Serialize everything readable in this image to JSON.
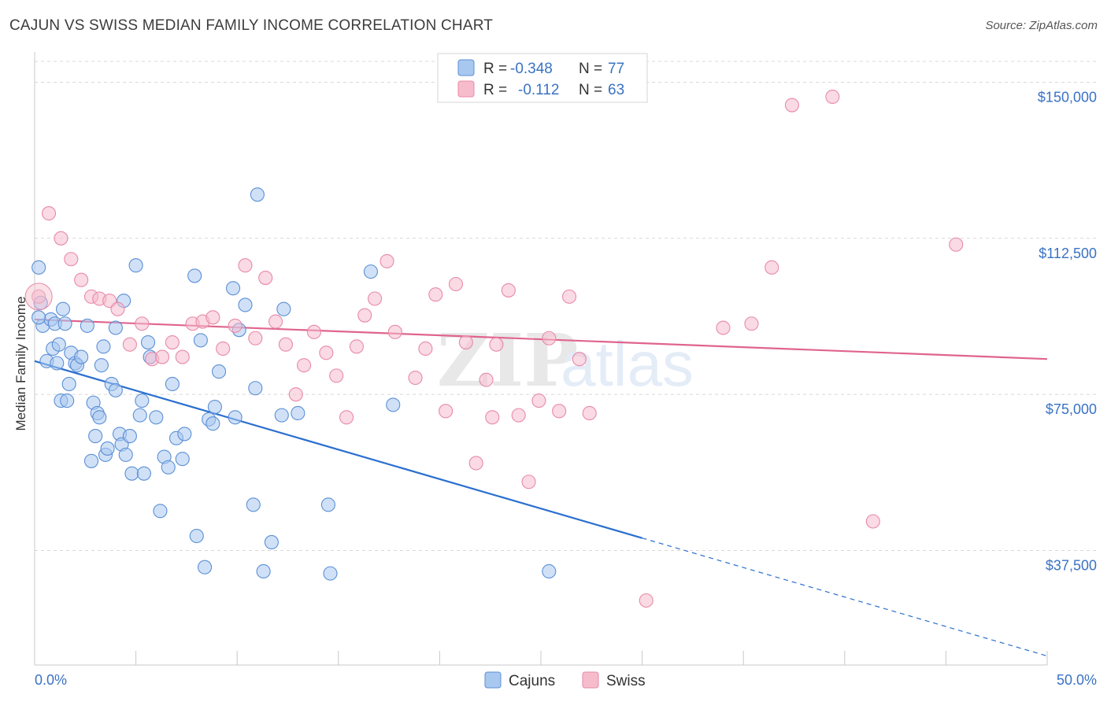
{
  "title": "CAJUN VS SWISS MEDIAN FAMILY INCOME CORRELATION CHART",
  "source": "Source: ZipAtlas.com",
  "watermark": {
    "zip": "ZIP",
    "atlas": "atlas"
  },
  "legend": {
    "r_label": "R =",
    "n_label": "N =",
    "rows": [
      {
        "r": "-0.348",
        "n": "77"
      },
      {
        "r": "-0.112",
        "n": "63"
      }
    ]
  },
  "colors": {
    "cajun_fill": "#a9c8f0",
    "cajun_stroke": "#5b8fd6",
    "cajun_line": "#2a6fcf",
    "swiss_fill": "#f6bccd",
    "swiss_stroke": "#e88aa7",
    "swiss_line": "#e0648d",
    "axis_label": "#3a72c4",
    "grid": "#d8d8d8"
  },
  "chart_data": {
    "type": "scatter",
    "title": "CAJUN VS SWISS MEDIAN FAMILY INCOME CORRELATION CHART",
    "xlabel": "",
    "ylabel": "Median Family Income",
    "xlim": [
      0,
      50
    ],
    "ylim": [
      10000,
      155000
    ],
    "x_tick_labels": [
      "0.0%",
      "50.0%"
    ],
    "y_ticks": [
      37500,
      75000,
      112500,
      150000
    ],
    "y_tick_labels": [
      "$37,500",
      "$75,000",
      "$112,500",
      "$150,000"
    ],
    "grid": true,
    "legend_position": "top-center",
    "series": [
      {
        "name": "Cajuns",
        "r": -0.348,
        "n": 77,
        "trend": {
          "x0": 0,
          "y0": 83000,
          "x1": 30,
          "y1": 40500,
          "x_dash_end": 50
        },
        "points": [
          [
            0.2,
            105500
          ],
          [
            0.3,
            97000
          ],
          [
            0.4,
            91500
          ],
          [
            0.6,
            83000
          ],
          [
            0.8,
            93000
          ],
          [
            0.9,
            86000
          ],
          [
            1.0,
            92000
          ],
          [
            1.1,
            82500
          ],
          [
            1.2,
            87000
          ],
          [
            1.3,
            73500
          ],
          [
            1.4,
            95500
          ],
          [
            1.5,
            92000
          ],
          [
            1.6,
            73500
          ],
          [
            1.7,
            77500
          ],
          [
            1.8,
            85000
          ],
          [
            2.0,
            82500
          ],
          [
            2.1,
            82000
          ],
          [
            2.3,
            84000
          ],
          [
            2.6,
            91500
          ],
          [
            2.8,
            59000
          ],
          [
            2.9,
            73000
          ],
          [
            3.0,
            65000
          ],
          [
            3.1,
            70500
          ],
          [
            3.2,
            69500
          ],
          [
            3.3,
            82000
          ],
          [
            3.4,
            86500
          ],
          [
            3.5,
            60500
          ],
          [
            3.6,
            62000
          ],
          [
            3.8,
            77500
          ],
          [
            4.0,
            76000
          ],
          [
            4.0,
            91000
          ],
          [
            4.2,
            65500
          ],
          [
            4.3,
            63000
          ],
          [
            4.4,
            97500
          ],
          [
            4.5,
            60500
          ],
          [
            4.7,
            65000
          ],
          [
            4.8,
            56000
          ],
          [
            5.0,
            106000
          ],
          [
            5.2,
            70000
          ],
          [
            5.3,
            73500
          ],
          [
            5.4,
            56000
          ],
          [
            5.6,
            87500
          ],
          [
            5.7,
            84000
          ],
          [
            6.0,
            69500
          ],
          [
            6.2,
            47000
          ],
          [
            6.4,
            60000
          ],
          [
            6.6,
            57500
          ],
          [
            6.8,
            77500
          ],
          [
            7.0,
            64500
          ],
          [
            7.3,
            59500
          ],
          [
            7.4,
            65500
          ],
          [
            7.9,
            103500
          ],
          [
            8.0,
            41000
          ],
          [
            8.2,
            88000
          ],
          [
            8.4,
            33500
          ],
          [
            8.6,
            69000
          ],
          [
            8.8,
            68000
          ],
          [
            8.9,
            72000
          ],
          [
            9.1,
            80500
          ],
          [
            9.8,
            100500
          ],
          [
            9.9,
            69500
          ],
          [
            10.1,
            90500
          ],
          [
            10.4,
            96500
          ],
          [
            10.8,
            48500
          ],
          [
            10.9,
            76500
          ],
          [
            11.0,
            123000
          ],
          [
            11.3,
            32500
          ],
          [
            11.7,
            39500
          ],
          [
            12.2,
            70000
          ],
          [
            12.3,
            95500
          ],
          [
            13.0,
            70500
          ],
          [
            14.5,
            48500
          ],
          [
            14.6,
            32000
          ],
          [
            16.6,
            104500
          ],
          [
            17.7,
            72500
          ],
          [
            25.4,
            32500
          ],
          [
            0.2,
            93500
          ]
        ]
      },
      {
        "name": "Swiss",
        "r": -0.112,
        "n": 63,
        "trend": {
          "x0": 0,
          "y0": 93000,
          "x1": 50,
          "y1": 83500
        },
        "points": [
          [
            0.2,
            98500
          ],
          [
            0.7,
            118500
          ],
          [
            1.3,
            112500
          ],
          [
            1.8,
            107500
          ],
          [
            2.3,
            102500
          ],
          [
            2.8,
            98500
          ],
          [
            3.2,
            98000
          ],
          [
            3.7,
            97500
          ],
          [
            4.1,
            95500
          ],
          [
            4.7,
            87000
          ],
          [
            5.3,
            92000
          ],
          [
            5.8,
            83500
          ],
          [
            6.3,
            84000
          ],
          [
            6.8,
            87500
          ],
          [
            7.3,
            84000
          ],
          [
            7.8,
            92000
          ],
          [
            8.3,
            92500
          ],
          [
            8.8,
            93500
          ],
          [
            9.3,
            86000
          ],
          [
            9.9,
            91500
          ],
          [
            10.4,
            106000
          ],
          [
            10.9,
            88500
          ],
          [
            11.4,
            103000
          ],
          [
            11.9,
            92500
          ],
          [
            12.4,
            87000
          ],
          [
            12.9,
            75000
          ],
          [
            13.3,
            82000
          ],
          [
            13.8,
            90000
          ],
          [
            14.4,
            85000
          ],
          [
            14.9,
            79500
          ],
          [
            15.4,
            69500
          ],
          [
            15.9,
            86500
          ],
          [
            16.3,
            94000
          ],
          [
            16.8,
            98000
          ],
          [
            17.4,
            107000
          ],
          [
            17.8,
            90000
          ],
          [
            18.8,
            79000
          ],
          [
            19.3,
            86000
          ],
          [
            19.8,
            99000
          ],
          [
            20.3,
            71000
          ],
          [
            20.8,
            101500
          ],
          [
            21.3,
            87500
          ],
          [
            21.8,
            58500
          ],
          [
            22.3,
            78500
          ],
          [
            22.6,
            69500
          ],
          [
            22.8,
            87000
          ],
          [
            23.4,
            100000
          ],
          [
            23.9,
            70000
          ],
          [
            24.4,
            54000
          ],
          [
            24.9,
            73500
          ],
          [
            25.4,
            88500
          ],
          [
            25.9,
            71000
          ],
          [
            26.4,
            98500
          ],
          [
            26.9,
            83500
          ],
          [
            27.4,
            70500
          ],
          [
            30.2,
            25500
          ],
          [
            34.0,
            91000
          ],
          [
            35.4,
            92000
          ],
          [
            36.4,
            105500
          ],
          [
            37.4,
            144500
          ],
          [
            39.4,
            146500
          ],
          [
            41.4,
            44500
          ],
          [
            45.5,
            111000
          ]
        ]
      }
    ]
  }
}
